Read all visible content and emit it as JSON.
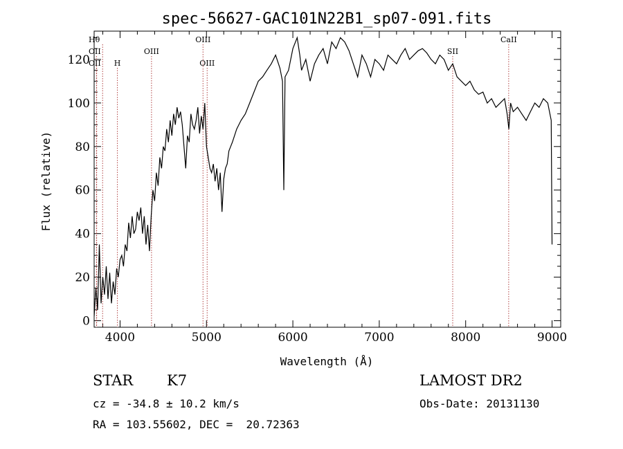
{
  "chart_data": {
    "type": "line",
    "title": "spec-56627-GAC101N22B1_sp07-091.fits",
    "xlabel": "Wavelength (Å)",
    "ylabel": "Flux (relative)",
    "xlim": [
      3700,
      9100
    ],
    "ylim": [
      -3,
      133
    ],
    "xticks": [
      4000,
      5000,
      6000,
      7000,
      8000,
      9000
    ],
    "xtick_labels": [
      "4000",
      "5000",
      "6000",
      "7000",
      "8000",
      "9000"
    ],
    "yticks": [
      0,
      20,
      40,
      60,
      80,
      100,
      120
    ],
    "ytick_labels": [
      "0",
      "20",
      "40",
      "60",
      "80",
      "100",
      "120"
    ],
    "series": [
      {
        "x": [
          3700,
          3720,
          3740,
          3760,
          3780,
          3800,
          3820,
          3840,
          3860,
          3880,
          3900,
          3920,
          3940,
          3960,
          3980,
          4000,
          4020,
          4040,
          4060,
          4080,
          4100,
          4120,
          4140,
          4160,
          4180,
          4200,
          4220,
          4240,
          4260,
          4280,
          4300,
          4320,
          4340,
          4360,
          4380,
          4400,
          4420,
          4440,
          4460,
          4480,
          4500,
          4520,
          4540,
          4560,
          4580,
          4600,
          4620,
          4640,
          4660,
          4680,
          4700,
          4720,
          4740,
          4760,
          4780,
          4800,
          4820,
          4840,
          4860,
          4880,
          4900,
          4920,
          4940,
          4960,
          4980,
          5000,
          5020,
          5040,
          5060,
          5080,
          5100,
          5120,
          5140,
          5160,
          5180,
          5200,
          5220,
          5240,
          5260,
          5280,
          5300,
          5350,
          5400,
          5450,
          5500,
          5550,
          5600,
          5650,
          5700,
          5750,
          5800,
          5850,
          5880,
          5895,
          5910,
          5950,
          6000,
          6050,
          6080,
          6100,
          6150,
          6200,
          6250,
          6300,
          6350,
          6400,
          6450,
          6500,
          6550,
          6600,
          6650,
          6700,
          6750,
          6800,
          6850,
          6900,
          6950,
          7000,
          7050,
          7100,
          7150,
          7200,
          7250,
          7300,
          7350,
          7400,
          7450,
          7500,
          7550,
          7600,
          7650,
          7700,
          7750,
          7800,
          7850,
          7900,
          7950,
          8000,
          8050,
          8100,
          8150,
          8200,
          8250,
          8300,
          8350,
          8400,
          8450,
          8480,
          8500,
          8520,
          8550,
          8600,
          8650,
          8700,
          8750,
          8800,
          8850,
          8900,
          8950,
          8990,
          9000
        ],
        "y": [
          2,
          15,
          5,
          35,
          8,
          20,
          12,
          25,
          10,
          22,
          8,
          18,
          12,
          24,
          20,
          28,
          30,
          25,
          35,
          32,
          45,
          38,
          48,
          40,
          42,
          50,
          46,
          52,
          40,
          48,
          35,
          44,
          32,
          48,
          60,
          55,
          68,
          62,
          75,
          70,
          80,
          78,
          88,
          82,
          92,
          85,
          95,
          90,
          98,
          93,
          96,
          90,
          80,
          70,
          85,
          82,
          95,
          90,
          88,
          92,
          98,
          86,
          94,
          88,
          100,
          80,
          75,
          70,
          68,
          72,
          64,
          70,
          60,
          68,
          50,
          65,
          70,
          72,
          78,
          80,
          82,
          88,
          92,
          95,
          100,
          105,
          110,
          112,
          115,
          118,
          122,
          116,
          110,
          60,
          112,
          115,
          125,
          130,
          122,
          115,
          120,
          110,
          118,
          122,
          125,
          118,
          128,
          125,
          130,
          128,
          124,
          118,
          112,
          122,
          118,
          112,
          120,
          118,
          115,
          122,
          120,
          118,
          122,
          125,
          120,
          122,
          124,
          125,
          123,
          120,
          118,
          122,
          120,
          115,
          118,
          112,
          110,
          108,
          110,
          106,
          104,
          105,
          100,
          102,
          98,
          100,
          102,
          95,
          88,
          100,
          96,
          98,
          95,
          92,
          96,
          100,
          98,
          102,
          100,
          92,
          35
        ]
      }
    ],
    "spectral_lines": [
      {
        "label": "Hθ",
        "x": 3798,
        "row": 0,
        "side": "left"
      },
      {
        "label": "OII",
        "x": 3727,
        "row": 1,
        "side": "left"
      },
      {
        "label": "OII",
        "x": 3729,
        "row": 2,
        "side": "left"
      },
      {
        "label": "H",
        "x": 3969,
        "row": 2,
        "side": "center"
      },
      {
        "label": "OIII",
        "x": 4364,
        "row": 1,
        "side": "center"
      },
      {
        "label": "OIII",
        "x": 4960,
        "row": 0,
        "side": "center"
      },
      {
        "label": "OIII",
        "x": 5008,
        "row": 2,
        "side": "center"
      },
      {
        "label": "SII",
        "x": 7850,
        "row": 1,
        "side": "center"
      },
      {
        "label": "CaII",
        "x": 8498,
        "row": 0,
        "side": "center"
      }
    ],
    "grid": false,
    "line_color": "#000000",
    "marker_color": "#b04040"
  },
  "info": {
    "object_class": "STAR",
    "subclass": "K7",
    "release": "LAMOST DR2",
    "redshift": "cz = -34.8 ± 10.2 km/s",
    "obs_date": "Obs-Date: 20131130",
    "coords": "RA = 103.55602, DEC =  20.72363"
  }
}
